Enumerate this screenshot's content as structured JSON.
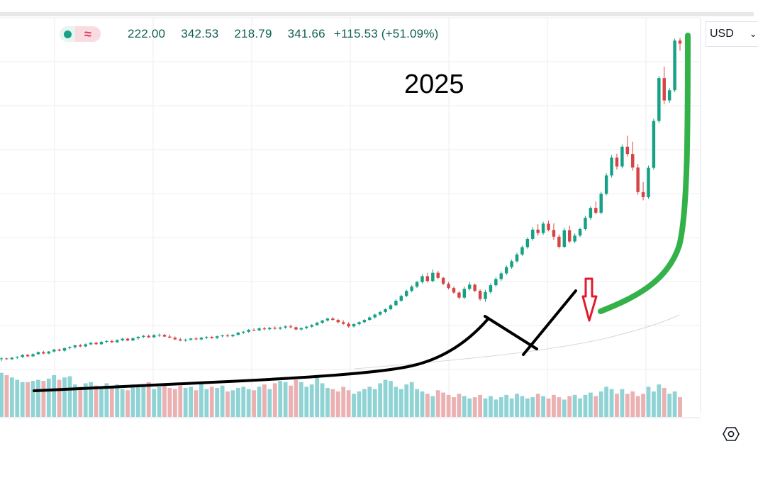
{
  "legend": {
    "open": "222.00",
    "high": "342.53",
    "low": "218.79",
    "close": "341.66",
    "change": "+115.53 (+51.09%)",
    "status_icon": "green-dot-icon",
    "indicator_icon": "wave-approx-icon",
    "up_color": "#16a085",
    "down_color": "#e0305a"
  },
  "currency": {
    "label": "USD",
    "chevron_icon": "chevron-down-icon"
  },
  "annotation": {
    "year": "2025"
  },
  "settings": {
    "icon": "settings-hexagon-icon"
  },
  "chart_data": {
    "type": "candlestick",
    "title": "",
    "grid": true,
    "ylim": [
      80,
      360
    ],
    "colors": {
      "up": "#16a085",
      "down": "#d64545",
      "volume_up": "#8fd3d4",
      "volume_down": "#eab0b2"
    },
    "series": [
      {
        "name": "",
        "values": [
          [
            118,
            119.5,
            116.5,
            118.5
          ],
          [
            118.5,
            119,
            117.5,
            118
          ],
          [
            118,
            119.6,
            117.2,
            119
          ],
          [
            119,
            120.2,
            118,
            119.5
          ],
          [
            119.5,
            121.6,
            118.8,
            121
          ],
          [
            121,
            121.8,
            119.4,
            120
          ],
          [
            120,
            122.2,
            119.5,
            121.5
          ],
          [
            121.5,
            123.4,
            121,
            123
          ],
          [
            123,
            124,
            121.4,
            122
          ],
          [
            122,
            123.8,
            121.5,
            123.4
          ],
          [
            123.4,
            125.3,
            122.8,
            124.8
          ],
          [
            124.8,
            125.5,
            123.5,
            124
          ],
          [
            124,
            126.2,
            123.4,
            125.8
          ],
          [
            125.8,
            127.2,
            124.8,
            126.5
          ],
          [
            126.5,
            128.3,
            125.5,
            127.8
          ],
          [
            127.8,
            128.8,
            126.4,
            127
          ],
          [
            127,
            129.1,
            126.5,
            128.5
          ],
          [
            128.5,
            130.2,
            127.7,
            129.6
          ],
          [
            129.6,
            130.3,
            128,
            128.6
          ],
          [
            128.6,
            130.9,
            128,
            130.2
          ],
          [
            130.2,
            131.5,
            129.4,
            130.8
          ],
          [
            130.8,
            131.8,
            129.4,
            130
          ],
          [
            130,
            132.1,
            129.5,
            131.4
          ],
          [
            131.4,
            133.1,
            130.6,
            132.5
          ],
          [
            132.5,
            133.2,
            130.7,
            131.2
          ],
          [
            131.2,
            133.5,
            130.8,
            132.8
          ],
          [
            132.8,
            134.4,
            131.7,
            133.8
          ],
          [
            133.8,
            135.2,
            132.8,
            134.5
          ],
          [
            134.5,
            135.4,
            133,
            133.5
          ],
          [
            133.5,
            135.7,
            133,
            135
          ],
          [
            135,
            136.2,
            133.8,
            135.2
          ],
          [
            135.2,
            135.8,
            133.6,
            134
          ],
          [
            134,
            135.4,
            132.8,
            133.2
          ],
          [
            133.2,
            134.1,
            131.6,
            132
          ],
          [
            132,
            133.1,
            130.6,
            131.2
          ],
          [
            131.2,
            132.5,
            130.4,
            131.8
          ],
          [
            131.8,
            133.2,
            131,
            132.6
          ],
          [
            132.6,
            133.7,
            131.5,
            132
          ],
          [
            132,
            133.8,
            131.2,
            133.2
          ],
          [
            133.2,
            134.4,
            132.3,
            133.8
          ],
          [
            133.8,
            134.5,
            132.4,
            133
          ],
          [
            133,
            134.7,
            132.2,
            134.2
          ],
          [
            134.2,
            135.4,
            133.4,
            134.8
          ],
          [
            134.8,
            135.9,
            133.6,
            134.2
          ],
          [
            134.2,
            135.8,
            133.5,
            135.2
          ],
          [
            135.2,
            137.3,
            134.8,
            136.8
          ],
          [
            136.8,
            138.1,
            135.8,
            137.4
          ],
          [
            137.4,
            139.3,
            136.6,
            138.8
          ],
          [
            138.8,
            139.9,
            137.8,
            138.4
          ],
          [
            138.4,
            140.6,
            137.8,
            139.8
          ],
          [
            139.8,
            140.8,
            138.4,
            139.2
          ],
          [
            139.2,
            140.8,
            138.5,
            140.2
          ],
          [
            140.2,
            141.3,
            138.9,
            139.6
          ],
          [
            139.6,
            141,
            138.8,
            140.4
          ],
          [
            140.4,
            141.9,
            139.6,
            141.2
          ],
          [
            141.2,
            142.5,
            139.8,
            140.6
          ],
          [
            140.6,
            141.2,
            138.5,
            139
          ],
          [
            139,
            140.6,
            138.2,
            140
          ],
          [
            140,
            141.6,
            139.2,
            141
          ],
          [
            141,
            142.8,
            140.2,
            142.2
          ],
          [
            142.2,
            144.5,
            141.6,
            143.8
          ],
          [
            143.8,
            145.9,
            143,
            145.4
          ],
          [
            145.4,
            147.4,
            144.6,
            146.8
          ],
          [
            146.8,
            147.8,
            145.3,
            145.8
          ],
          [
            145.8,
            146.6,
            143.3,
            144.2
          ],
          [
            144.2,
            145.6,
            142.4,
            143
          ],
          [
            143,
            144.2,
            140.3,
            141.2
          ],
          [
            141.2,
            143.4,
            140.4,
            142.8
          ],
          [
            142.8,
            144.8,
            142,
            144.2
          ],
          [
            144.2,
            146.4,
            143.4,
            145.8
          ],
          [
            145.8,
            148.3,
            145.2,
            147.6
          ],
          [
            147.6,
            150.3,
            146.8,
            149.6
          ],
          [
            149.6,
            152.2,
            148.8,
            151.4
          ],
          [
            151.4,
            154.1,
            150.6,
            153.4
          ],
          [
            153.4,
            157,
            152.6,
            156.2
          ],
          [
            156.2,
            160.4,
            155.4,
            159.4
          ],
          [
            159.4,
            163.8,
            158.6,
            162.8
          ],
          [
            162.8,
            167.3,
            162,
            166.4
          ],
          [
            166.4,
            170.4,
            165.4,
            169.4
          ],
          [
            169.4,
            173.6,
            168.4,
            172.6
          ],
          [
            172.6,
            178.1,
            171.6,
            176.8
          ],
          [
            176.8,
            179.2,
            172.4,
            173.4
          ],
          [
            173.4,
            181.6,
            172.4,
            179.2
          ],
          [
            179.2,
            180.6,
            174.6,
            175.6
          ],
          [
            175.6,
            176.4,
            170.6,
            171.4
          ],
          [
            171.4,
            172.6,
            167.4,
            168.4
          ],
          [
            168.4,
            169.5,
            164.4,
            165.2
          ],
          [
            165.2,
            166.2,
            160.4,
            161.6
          ],
          [
            161.6,
            169.4,
            160.6,
            167.8
          ],
          [
            167.8,
            172.6,
            166.6,
            170.8
          ],
          [
            170.8,
            171.6,
            165.4,
            166.4
          ],
          [
            166.4,
            167.5,
            159.4,
            160.6
          ],
          [
            160.6,
            167.2,
            158.6,
            165.6
          ],
          [
            165.6,
            171.8,
            164.4,
            170.4
          ],
          [
            170.4,
            176.2,
            169.2,
            174.8
          ],
          [
            174.8,
            180.2,
            173.6,
            178.8
          ],
          [
            178.8,
            184.4,
            177.6,
            183.2
          ],
          [
            183.2,
            188.6,
            182,
            187.4
          ],
          [
            187.4,
            193.6,
            186.2,
            192.2
          ],
          [
            192.2,
            198.6,
            191,
            197.4
          ],
          [
            197.4,
            204.4,
            196.2,
            203.2
          ],
          [
            203.2,
            211.6,
            202,
            209.8
          ],
          [
            209.8,
            213.6,
            205.4,
            207.4
          ],
          [
            207.4,
            215.4,
            206.2,
            214
          ],
          [
            214,
            216.2,
            208.6,
            209.6
          ],
          [
            209.6,
            214.2,
            202.6,
            204.8
          ],
          [
            204.8,
            206.4,
            196.4,
            197.6
          ],
          [
            197.6,
            211,
            196.6,
            209.4
          ],
          [
            209.4,
            212.6,
            200.2,
            201.4
          ],
          [
            201.4,
            207.2,
            200.2,
            205.6
          ],
          [
            205.6,
            211.2,
            204.6,
            210.2
          ],
          [
            210.2,
            219.6,
            209.2,
            218.2
          ],
          [
            218.2,
            226.4,
            216.8,
            225.2
          ],
          [
            225.2,
            229.8,
            220.6,
            221.8
          ],
          [
            221.8,
            236.6,
            220.6,
            235.2
          ],
          [
            235.2,
            249.8,
            234,
            248.2
          ],
          [
            248.2,
            262.6,
            246.6,
            260.8
          ],
          [
            260.8,
            263.6,
            252.4,
            254.6
          ],
          [
            254.6,
            270.2,
            253.2,
            268.6
          ],
          [
            268.6,
            276.4,
            261.6,
            263.4
          ],
          [
            263.4,
            272.2,
            251.6,
            253.8
          ],
          [
            253.8,
            256.4,
            234.6,
            236.4
          ],
          [
            236.4,
            243.6,
            230.6,
            232.8
          ],
          [
            232.8,
            255.2,
            231.6,
            253.6
          ],
          [
            253.6,
            288.4,
            252.2,
            286.8
          ],
          [
            286.8,
            318.6,
            285.4,
            317.2
          ],
          [
            317.2,
            325.4,
            298.6,
            301.4
          ],
          [
            301.4,
            310.2,
            299.6,
            308.6
          ],
          [
            308.6,
            345.2,
            307.2,
            343.8
          ],
          [
            343.8,
            345.6,
            336.6,
            341.66
          ]
        ]
      }
    ],
    "volume": [
      3.8,
      3.6,
      3.4,
      3.2,
      3.0,
      3.0,
      3.1,
      3.2,
      3.1,
      3.3,
      3.6,
      3.2,
      3.4,
      3.5,
      2.8,
      2.6,
      2.9,
      3.0,
      2.7,
      2.6,
      2.9,
      2.6,
      2.8,
      2.4,
      2.3,
      2.8,
      2.6,
      2.7,
      3.0,
      2.4,
      2.6,
      2.8,
      2.5,
      2.4,
      2.7,
      2.5,
      2.6,
      2.3,
      2.9,
      2.4,
      2.6,
      2.5,
      2.7,
      2.2,
      2.3,
      2.5,
      2.6,
      2.4,
      2.3,
      2.6,
      2.8,
      2.4,
      2.9,
      3.1,
      3.0,
      2.7,
      3.2,
      3.0,
      2.6,
      2.8,
      3.4,
      2.9,
      2.5,
      2.4,
      2.2,
      2.6,
      2.3,
      2.0,
      2.2,
      2.4,
      2.6,
      2.4,
      2.9,
      3.2,
      3.1,
      2.6,
      2.4,
      2.8,
      3.0,
      2.4,
      2.2,
      2.0,
      1.8,
      2.3,
      2.1,
      1.9,
      1.7,
      2.0,
      1.8,
      1.6,
      1.7,
      1.9,
      1.6,
      1.8,
      1.5,
      1.7,
      1.9,
      1.6,
      2.0,
      1.8,
      1.6,
      1.7,
      2.0,
      1.8,
      1.6,
      1.9,
      1.7,
      1.5,
      1.8,
      1.9,
      1.6,
      1.9,
      2.1,
      1.8,
      2.2,
      2.6,
      2.4,
      2.0,
      2.4,
      2.0,
      2.2,
      1.8,
      2.0,
      2.6,
      2.2,
      2.8,
      2.5,
      2.0,
      2.2,
      1.7
    ],
    "volume_max": 5.0
  }
}
